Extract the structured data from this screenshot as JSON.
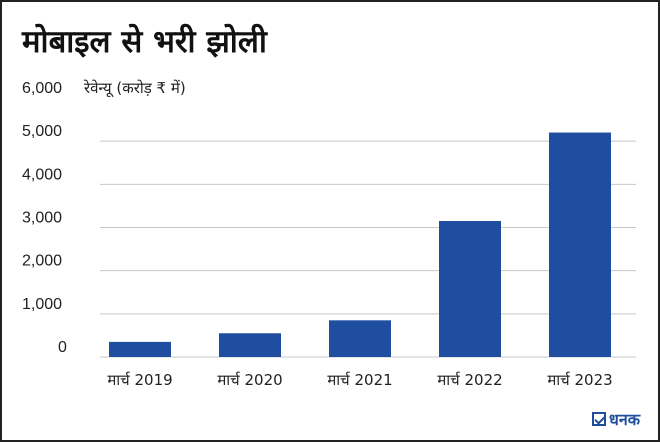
{
  "title": "मोबाइल से भरी झोली",
  "brand": {
    "name": "धनक",
    "icon": "check-box-icon"
  },
  "colors": {
    "bar": "#1f4ea0",
    "grid": "#c8c8c8",
    "text": "#222222"
  },
  "chart_data": {
    "type": "bar",
    "title": "मोबाइल से भरी झोली",
    "ylabel": "रेवेन्यू (करोड़ ₹ में)",
    "xlabel": "",
    "categories": [
      "मार्च 2019",
      "मार्च 2020",
      "मार्च 2021",
      "मार्च 2022",
      "मार्च 2023"
    ],
    "values": [
      350,
      550,
      850,
      3150,
      5200
    ],
    "yticks": [
      0,
      1000,
      2000,
      3000,
      4000,
      5000,
      6000
    ],
    "ytick_labels": [
      "0",
      "1,000",
      "2,000",
      "3,000",
      "4,000",
      "5,000",
      "6,000"
    ],
    "ylim": [
      0,
      6000
    ],
    "grid": true
  }
}
